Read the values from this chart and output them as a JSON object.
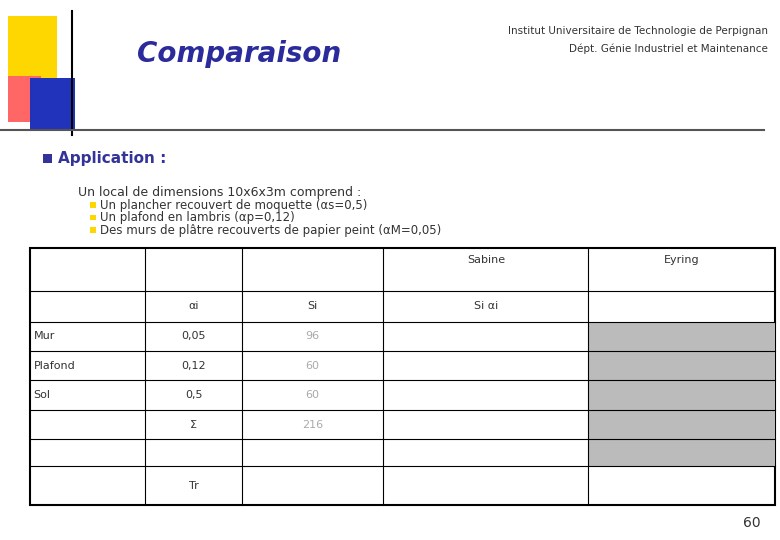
{
  "title": "Comparaison",
  "title_color": "#2B2B9B",
  "header_right_line1": "Institut Universitaire de Technologie de Perpignan",
  "header_right_line2": "Dépt. Génie Industriel et Maintenance",
  "application_label": "Application :",
  "body_text_line1": "Un local de dimensions 10x6x3m comprend :",
  "bullets": [
    "Un plancher recouvert de moquette (αs=0,5)",
    "Un plafond en lambris (αp=0,12)",
    "Des murs de plâtre recouverts de papier peint (αM=0,05)"
  ],
  "si_color": "#AAAAAA",
  "gray_fill": "#BBBBBB",
  "page_number": "60",
  "bg_color": "#FFFFFF",
  "logo_yellow": "#FFD700",
  "logo_red": "#FF6666",
  "logo_blue": "#2233BB",
  "app_bullet_color": "#333399",
  "sub_bullet_color": "#FFD700",
  "title_font_size": 20,
  "header_font_size": 7.5,
  "app_font_size": 11,
  "body_font_size": 9,
  "table_font_size": 8
}
